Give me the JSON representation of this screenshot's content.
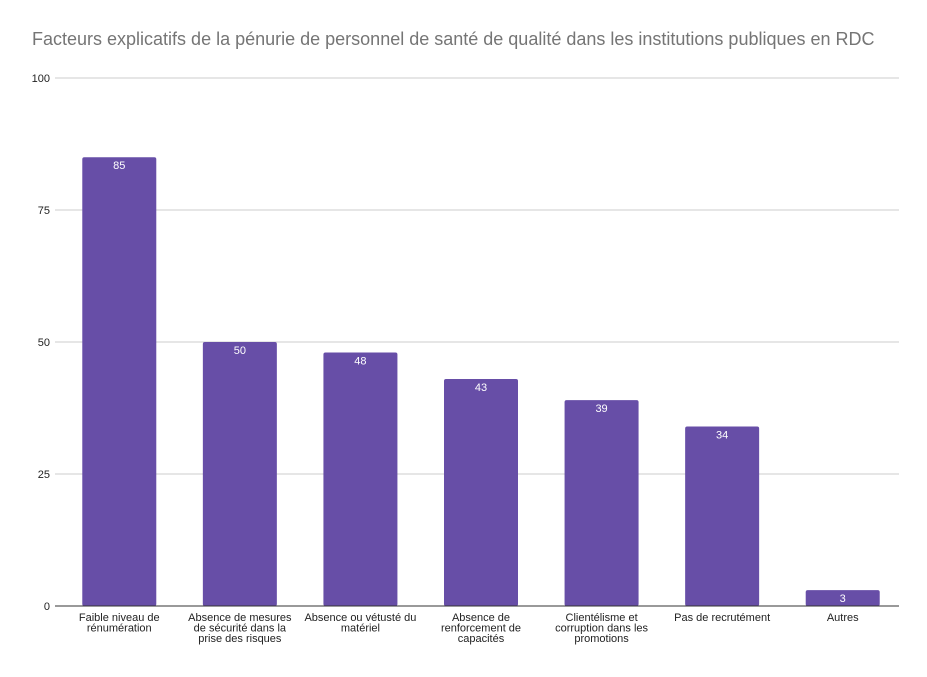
{
  "chart_data": {
    "type": "bar",
    "title": "Facteurs explicatifs de la pénurie de personnel de santé de qualité dans les institutions publiques en RDC",
    "xlabel": "",
    "ylabel": "",
    "ylim": [
      0,
      100
    ],
    "yticks": [
      "0",
      "25",
      "50",
      "75",
      "100"
    ],
    "grid": true,
    "legend": "none",
    "bar_color": "#674ea7",
    "categories": [
      [
        "Faible niveau de",
        "rénumération"
      ],
      [
        "Absence de mesures",
        "de sécurité dans la",
        "prise des risques"
      ],
      [
        "Absence ou vétusté du",
        "matériel"
      ],
      [
        "Absence de",
        "renforcement de",
        "capacités"
      ],
      [
        "Clientélisme et",
        "corruption dans les",
        "promotions"
      ],
      [
        "Pas de recrutément"
      ],
      [
        "Autres"
      ]
    ],
    "values": [
      85,
      50,
      48,
      43,
      39,
      34,
      3
    ]
  }
}
